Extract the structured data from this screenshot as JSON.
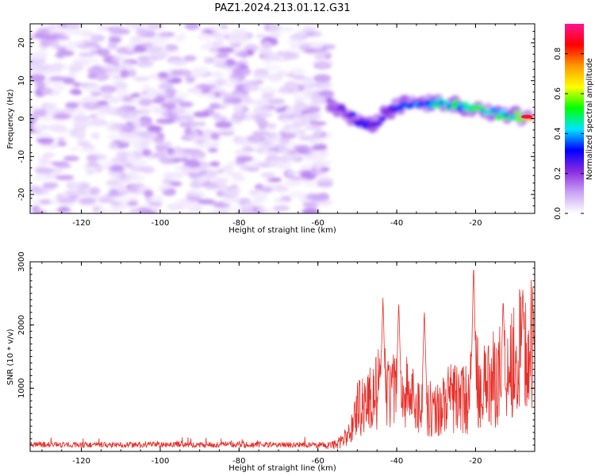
{
  "title": "PAZ1.2024.213.01.12.G31",
  "chart_data": [
    {
      "type": "heatmap",
      "xlabel": "Height of straight line (km)",
      "ylabel": "Frequency (Hz)",
      "xlim": [
        -133,
        -5
      ],
      "ylim": [
        -25,
        25
      ],
      "x_ticks": [
        "-120",
        "-100",
        "-80",
        "-60",
        "-40",
        "-20"
      ],
      "y_ticks": [
        "-20",
        "-10",
        "0",
        "10",
        "20"
      ],
      "colorbar": {
        "label": "Normalized spectral amplitude",
        "range": [
          0,
          0.95
        ],
        "ticks": [
          "0.0",
          "0.2",
          "0.4",
          "0.6",
          "0.8"
        ],
        "colors": [
          "#ffffff",
          "#c9a2f5",
          "#8a2be2",
          "#0000ff",
          "#00e5ff",
          "#00ff00",
          "#ffff00",
          "#ff9900",
          "#ff0000",
          "#ff1493"
        ]
      },
      "noise_region": {
        "x": [
          -133,
          -57
        ],
        "freq": [
          -25,
          25
        ],
        "amplitude": [
          0.02,
          0.16
        ]
      },
      "signal_track": [
        {
          "x": -57,
          "freq": 4,
          "amp": 0.2
        },
        {
          "x": -52,
          "freq": 1,
          "amp": 0.25
        },
        {
          "x": -48,
          "freq": -2,
          "amp": 0.35
        },
        {
          "x": -45,
          "freq": -1,
          "amp": 0.3
        },
        {
          "x": -42,
          "freq": 2,
          "amp": 0.3
        },
        {
          "x": -38,
          "freq": 4,
          "amp": 0.35
        },
        {
          "x": -33,
          "freq": 4,
          "amp": 0.45
        },
        {
          "x": -28,
          "freq": 4,
          "amp": 0.5
        },
        {
          "x": -23,
          "freq": 3,
          "amp": 0.5
        },
        {
          "x": -18,
          "freq": 2,
          "amp": 0.55
        },
        {
          "x": -13,
          "freq": 1,
          "amp": 0.5
        },
        {
          "x": -8,
          "freq": 0.5,
          "amp": 0.6
        },
        {
          "x": -6,
          "freq": 0.5,
          "amp": 0.9
        }
      ]
    },
    {
      "type": "line",
      "xlabel": "Height of straight line (km)",
      "ylabel": "SNR (10 * v/v)",
      "xlim": [
        -133,
        -5
      ],
      "ylim": [
        0,
        3000
      ],
      "x_ticks": [
        "-120",
        "-100",
        "-80",
        "-60",
        "-40",
        "-20"
      ],
      "y_ticks": [
        "1000",
        "2000",
        "3000"
      ],
      "line_color": "#e8302a",
      "envelope": [
        {
          "x": -133,
          "y": 90
        },
        {
          "x": -60,
          "y": 90
        },
        {
          "x": -55,
          "y": 150
        },
        {
          "x": -52,
          "y": 350
        },
        {
          "x": -50,
          "y": 900
        },
        {
          "x": -47,
          "y": 1050
        },
        {
          "x": -44,
          "y": 1300
        },
        {
          "x": -41,
          "y": 1200
        },
        {
          "x": -38,
          "y": 1250
        },
        {
          "x": -34,
          "y": 900
        },
        {
          "x": -30,
          "y": 850
        },
        {
          "x": -26,
          "y": 1100
        },
        {
          "x": -22,
          "y": 1050
        },
        {
          "x": -20,
          "y": 1500
        },
        {
          "x": -18,
          "y": 1300
        },
        {
          "x": -15,
          "y": 1500
        },
        {
          "x": -12,
          "y": 1800
        },
        {
          "x": -9,
          "y": 2000
        },
        {
          "x": -6,
          "y": 2100
        },
        {
          "x": -5,
          "y": 2000
        }
      ],
      "peaks": [
        {
          "x": -43.5,
          "y": 2450
        },
        {
          "x": -39.5,
          "y": 2400
        },
        {
          "x": -33,
          "y": 2250
        },
        {
          "x": -20.5,
          "y": 3000
        },
        {
          "x": -13,
          "y": 2450
        },
        {
          "x": -8,
          "y": 2600
        }
      ]
    }
  ]
}
